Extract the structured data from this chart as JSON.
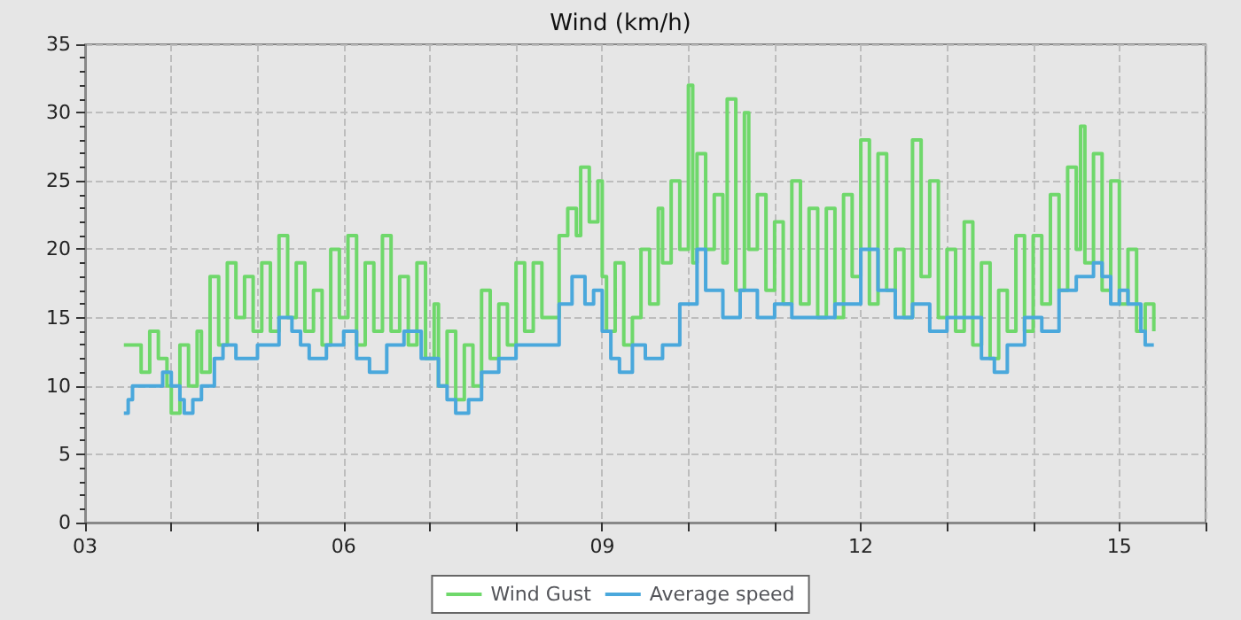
{
  "chart_data": {
    "type": "step",
    "title": "Wind (km/h)",
    "xlim": [
      3,
      16
    ],
    "xticks": [
      {
        "value": 3,
        "label": "03"
      },
      {
        "value": 4,
        "label": null
      },
      {
        "value": 5,
        "label": null
      },
      {
        "value": 6,
        "label": "06"
      },
      {
        "value": 7,
        "label": null
      },
      {
        "value": 8,
        "label": null
      },
      {
        "value": 9,
        "label": "09"
      },
      {
        "value": 10,
        "label": null
      },
      {
        "value": 11,
        "label": null
      },
      {
        "value": 12,
        "label": "12"
      },
      {
        "value": 13,
        "label": null
      },
      {
        "value": 14,
        "label": null
      },
      {
        "value": 15,
        "label": "15"
      },
      {
        "value": 16,
        "label": null
      }
    ],
    "ylim": [
      0,
      35
    ],
    "yticks": [
      0,
      5,
      10,
      15,
      20,
      25,
      30,
      35
    ],
    "grid": true,
    "legend": "bottom",
    "marker": "none",
    "series": [
      {
        "name": "Wind Gust",
        "color": "#6fd86b",
        "x": [
          3.45,
          3.55,
          3.65,
          3.75,
          3.85,
          3.95,
          4.0,
          4.1,
          4.2,
          4.3,
          4.35,
          4.45,
          4.55,
          4.65,
          4.75,
          4.85,
          4.95,
          5.05,
          5.15,
          5.25,
          5.35,
          5.45,
          5.55,
          5.65,
          5.75,
          5.85,
          5.95,
          6.05,
          6.15,
          6.25,
          6.35,
          6.45,
          6.55,
          6.65,
          6.75,
          6.85,
          6.95,
          7.05,
          7.1,
          7.2,
          7.3,
          7.4,
          7.5,
          7.6,
          7.7,
          7.8,
          7.9,
          8.0,
          8.1,
          8.2,
          8.3,
          8.5,
          8.6,
          8.7,
          8.75,
          8.85,
          8.95,
          9.0,
          9.05,
          9.15,
          9.25,
          9.35,
          9.45,
          9.55,
          9.65,
          9.7,
          9.8,
          9.9,
          10.0,
          10.05,
          10.1,
          10.2,
          10.3,
          10.4,
          10.45,
          10.55,
          10.65,
          10.7,
          10.8,
          10.9,
          11.0,
          11.1,
          11.2,
          11.3,
          11.4,
          11.5,
          11.6,
          11.7,
          11.8,
          11.9,
          12.0,
          12.1,
          12.2,
          12.3,
          12.4,
          12.5,
          12.6,
          12.7,
          12.8,
          12.9,
          13.0,
          13.1,
          13.2,
          13.3,
          13.4,
          13.5,
          13.6,
          13.7,
          13.8,
          13.9,
          14.0,
          14.1,
          14.2,
          14.3,
          14.4,
          14.5,
          14.55,
          14.6,
          14.7,
          14.8,
          14.9,
          15.0,
          15.1,
          15.2,
          15.3,
          15.4
        ],
        "values": [
          13,
          13,
          11,
          14,
          12,
          10,
          8,
          13,
          10,
          14,
          11,
          18,
          13,
          19,
          15,
          18,
          14,
          19,
          14,
          21,
          15,
          19,
          14,
          17,
          13,
          20,
          15,
          21,
          13,
          19,
          14,
          21,
          14,
          18,
          13,
          19,
          12,
          16,
          10,
          14,
          9,
          13,
          10,
          17,
          12,
          16,
          13,
          19,
          14,
          19,
          15,
          21,
          23,
          21,
          26,
          22,
          25,
          18,
          14,
          19,
          13,
          15,
          20,
          16,
          23,
          19,
          25,
          20,
          32,
          19,
          27,
          20,
          24,
          19,
          31,
          17,
          30,
          20,
          24,
          17,
          22,
          16,
          25,
          16,
          23,
          15,
          23,
          15,
          24,
          18,
          28,
          16,
          27,
          17,
          20,
          15,
          28,
          18,
          25,
          15,
          20,
          14,
          22,
          13,
          19,
          12,
          17,
          14,
          21,
          14,
          21,
          16,
          24,
          17,
          26,
          20,
          29,
          19,
          27,
          17,
          25,
          16,
          20,
          14,
          16,
          14
        ]
      },
      {
        "name": "Average speed",
        "color": "#4aa8dc",
        "x": [
          3.45,
          3.5,
          3.55,
          3.8,
          3.9,
          4.0,
          4.1,
          4.15,
          4.25,
          4.35,
          4.5,
          4.6,
          4.75,
          5.0,
          5.25,
          5.4,
          5.5,
          5.6,
          5.8,
          6.0,
          6.15,
          6.3,
          6.5,
          6.7,
          6.9,
          7.0,
          7.1,
          7.2,
          7.3,
          7.45,
          7.6,
          7.8,
          8.0,
          8.3,
          8.5,
          8.65,
          8.8,
          8.9,
          9.0,
          9.1,
          9.2,
          9.35,
          9.5,
          9.7,
          9.9,
          10.1,
          10.2,
          10.4,
          10.6,
          10.8,
          11.0,
          11.2,
          11.5,
          11.7,
          11.9,
          12.0,
          12.2,
          12.4,
          12.6,
          12.8,
          13.0,
          13.2,
          13.4,
          13.55,
          13.7,
          13.9,
          14.1,
          14.3,
          14.5,
          14.7,
          14.8,
          14.9,
          15.0,
          15.1,
          15.25,
          15.3,
          15.4
        ],
        "values": [
          8,
          9,
          10,
          10,
          11,
          10,
          9,
          8,
          9,
          10,
          12,
          13,
          12,
          13,
          15,
          14,
          13,
          12,
          13,
          14,
          12,
          11,
          13,
          14,
          12,
          12,
          10,
          9,
          8,
          9,
          11,
          12,
          13,
          13,
          16,
          18,
          16,
          17,
          14,
          12,
          11,
          13,
          12,
          13,
          16,
          20,
          17,
          15,
          17,
          15,
          16,
          15,
          15,
          16,
          16,
          20,
          17,
          15,
          16,
          14,
          15,
          15,
          12,
          11,
          13,
          15,
          14,
          17,
          18,
          19,
          18,
          16,
          17,
          16,
          14,
          13,
          13
        ]
      }
    ]
  }
}
